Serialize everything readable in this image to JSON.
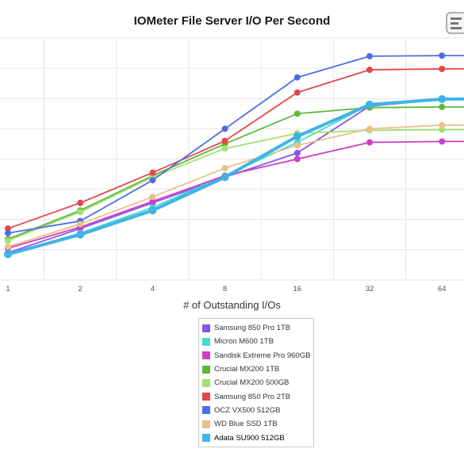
{
  "chart_data": {
    "type": "line",
    "title": "IOMeter File Server I/O Per Second",
    "xlabel": "# of Outstanding I/Os",
    "ylabel": "",
    "x_scale": "log2",
    "x": [
      1,
      2,
      4,
      8,
      16,
      32,
      64,
      128
    ],
    "x_tick_labels": [
      "1",
      "2",
      "4",
      "8",
      "16",
      "32",
      "64"
    ],
    "grid": true,
    "legend_position": "bottom-center",
    "series": [
      {
        "name": "Samsung 850 Pro 1TB",
        "color": "#8a55e6",
        "values": [
          0.9,
          1.7,
          2.55,
          3.4,
          4.2,
          5.75,
          5.97,
          5.98
        ]
      },
      {
        "name": "Micron M600 1TB",
        "color": "#4ad8d2",
        "values": [
          0.85,
          1.55,
          2.4,
          3.45,
          4.55,
          5.8,
          6.0,
          6.01
        ]
      },
      {
        "name": "Sandisk Extreme Pro 960GB",
        "color": "#cc3fc3",
        "values": [
          1.05,
          1.75,
          2.6,
          3.45,
          4.0,
          4.55,
          4.58,
          4.59
        ]
      },
      {
        "name": "Crucial MX200 1TB",
        "color": "#5fb83b",
        "values": [
          1.35,
          2.3,
          3.45,
          4.5,
          5.5,
          5.7,
          5.72,
          5.72
        ]
      },
      {
        "name": "Crucial MX200 500GB",
        "color": "#a3df72",
        "values": [
          1.3,
          2.25,
          3.4,
          4.35,
          4.85,
          4.95,
          4.97,
          4.97
        ]
      },
      {
        "name": "Samsung 850 Pro 2TB",
        "color": "#e4474a",
        "values": [
          1.7,
          2.55,
          3.55,
          4.6,
          6.2,
          6.95,
          6.98,
          6.98
        ]
      },
      {
        "name": "OCZ VX500 512GB",
        "color": "#4e6de8",
        "values": [
          1.55,
          1.95,
          3.3,
          5.0,
          6.7,
          7.4,
          7.42,
          7.42
        ]
      },
      {
        "name": "WD Blue SSD 1TB",
        "color": "#e9c08a",
        "values": [
          1.1,
          1.85,
          2.75,
          3.7,
          4.45,
          5.0,
          5.12,
          5.13
        ]
      },
      {
        "name": "Adata SU900 512GB",
        "color": "#3fb3e6",
        "values": [
          0.85,
          1.5,
          2.3,
          3.4,
          4.75,
          5.8,
          5.98,
          6.0
        ]
      }
    ]
  }
}
